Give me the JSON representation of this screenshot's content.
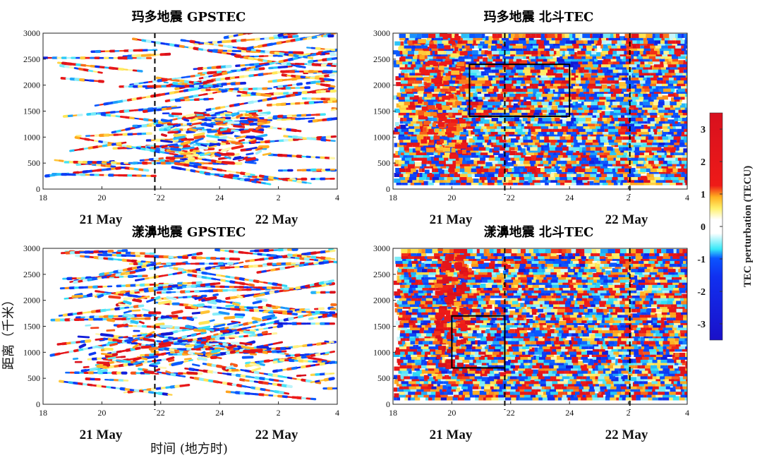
{
  "chart_data": {
    "type": "heatmap",
    "panels": [
      {
        "id": "maduo-gps",
        "title": "玛多地震 GPSTEC",
        "x_ticks": [
          "18",
          "20",
          "22",
          "24",
          "2",
          "4"
        ],
        "y_ticks": [
          "0",
          "500",
          "1000",
          "1500",
          "2000",
          "2500",
          "3000"
        ],
        "xlim": [
          18,
          28
        ],
        "ylim": [
          0,
          3000
        ],
        "date_labels": [
          "21 May",
          "22 May"
        ],
        "event_lines_x": [
          21.8
        ],
        "boxes": [],
        "style": "arcs",
        "seed": 11
      },
      {
        "id": "maduo-bds",
        "title": "玛多地震 北斗TEC",
        "x_ticks": [
          "18",
          "20",
          "22",
          "24",
          "2",
          "4"
        ],
        "y_ticks": [
          "0",
          "500",
          "1000",
          "1500",
          "2000",
          "2500",
          "3000"
        ],
        "xlim": [
          18,
          28
        ],
        "ylim": [
          0,
          3000
        ],
        "date_labels": [
          "21 May",
          "22 May"
        ],
        "event_lines_x": [
          21.8,
          26.05
        ],
        "boxes": [
          {
            "x0": 20.6,
            "x1": 24.0,
            "y0": 1400,
            "y1": 2400
          }
        ],
        "style": "rows",
        "seed": 23
      },
      {
        "id": "yangbi-gps",
        "title": "漾濞地震 GPSTEC",
        "x_ticks": [
          "18",
          "20",
          "22",
          "24",
          "2",
          "4"
        ],
        "y_ticks": [
          "0",
          "500",
          "1000",
          "1500",
          "2000",
          "2500",
          "3000"
        ],
        "xlim": [
          18,
          28
        ],
        "ylim": [
          0,
          3000
        ],
        "date_labels": [
          "21 May",
          "22 May"
        ],
        "event_lines_x": [
          21.8
        ],
        "boxes": [],
        "style": "arcs",
        "seed": 37
      },
      {
        "id": "yangbi-bds",
        "title": "漾濞地震 北斗TEC",
        "x_ticks": [
          "18",
          "20",
          "22",
          "24",
          "2",
          "4"
        ],
        "y_ticks": [
          "0",
          "500",
          "1000",
          "1500",
          "2000",
          "2500",
          "3000"
        ],
        "xlim": [
          18,
          28
        ],
        "ylim": [
          0,
          3000
        ],
        "date_labels": [
          "21 May",
          "22 May"
        ],
        "event_lines_x": [
          21.8,
          26.05
        ],
        "boxes": [
          {
            "x0": 20.0,
            "x1": 21.8,
            "y0": 700,
            "y1": 1700
          }
        ],
        "style": "rows",
        "seed": 53
      }
    ],
    "ylabel": "距离（千米）",
    "xlabel": "时间 (地方时)",
    "colorbar": {
      "label": "TEC perturbation (TECU)",
      "ticks": [
        "3",
        "2",
        "1",
        "0",
        "-1",
        "-2",
        "-3"
      ],
      "range": [
        -3.5,
        3.5
      ],
      "colors": [
        "#0a12d6",
        "#1e6cf0",
        "#33e0f5",
        "#ffffff",
        "#ffe24a",
        "#ff8a1a",
        "#e8121c"
      ]
    }
  }
}
